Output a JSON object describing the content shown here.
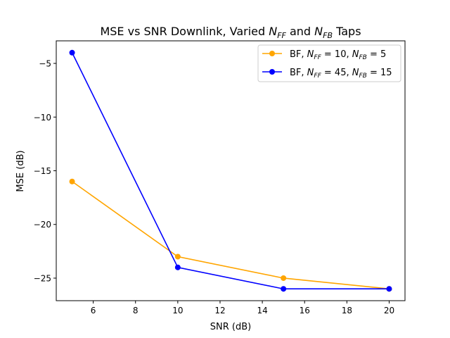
{
  "chart_data": {
    "type": "line",
    "title": {
      "prefix": "MSE vs SNR Downlink, Varied ",
      "sym1": "N",
      "sub1": "FF",
      "mid": " and ",
      "sym2": "N",
      "sub2": "FB",
      "suffix": " Taps"
    },
    "xlabel": "SNR (dB)",
    "ylabel": "MSE (dB)",
    "xlim": [
      4.25,
      20.75
    ],
    "ylim": [
      -27.1,
      -2.9
    ],
    "xticks": [
      6,
      8,
      10,
      12,
      14,
      16,
      18,
      20
    ],
    "yticks": [
      -5,
      -10,
      -15,
      -20,
      -25
    ],
    "xtick_labels": [
      "6",
      "8",
      "10",
      "12",
      "14",
      "16",
      "18",
      "20"
    ],
    "ytick_labels": [
      "−5",
      "−10",
      "−15",
      "−20",
      "−25"
    ],
    "grid": false,
    "legend_position": "top-right",
    "x": [
      5,
      10,
      15,
      20
    ],
    "series": [
      {
        "color": "#ffa500",
        "values": [
          -16,
          -23,
          -25,
          -26
        ],
        "legend": {
          "prefix": "BF, ",
          "n1": "N",
          "s1": "FF",
          "v1": " = 10, ",
          "n2": "N",
          "s2": "FB",
          "v2": " = 5"
        }
      },
      {
        "color": "#0000ff",
        "values": [
          -4,
          -24,
          -26,
          -26
        ],
        "legend": {
          "prefix": "BF, ",
          "n1": "N",
          "s1": "FF",
          "v1": " = 45, ",
          "n2": "N",
          "s2": "FB",
          "v2": " = 15"
        }
      }
    ]
  }
}
